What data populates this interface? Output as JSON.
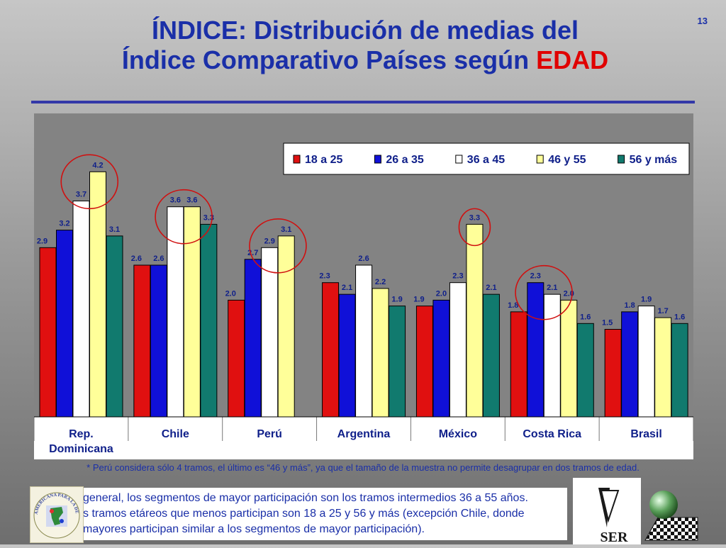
{
  "slide_number": "13",
  "title": {
    "line1": "ÍNDICE: Distribución de medias del",
    "line2_prefix": "Índice Comparativo Países según ",
    "line2_highlight": "EDAD"
  },
  "colors": {
    "title": "#1a2fa8",
    "highlight": "#e00000",
    "series": [
      "#e01010",
      "#1010d8",
      "#ffffff",
      "#ffff99",
      "#117a6e"
    ]
  },
  "chart_data": {
    "type": "bar",
    "categories": [
      "Rep. Dominicana",
      "Chile",
      "Perú",
      "Argentina",
      "México",
      "Costa Rica",
      "Brasil"
    ],
    "series": [
      {
        "name": "18 a 25",
        "values": [
          2.9,
          2.6,
          2.0,
          2.3,
          1.9,
          1.8,
          1.5
        ]
      },
      {
        "name": "26 a 35",
        "values": [
          3.2,
          2.6,
          2.7,
          2.1,
          2.0,
          2.3,
          1.8
        ]
      },
      {
        "name": "36 a 45",
        "values": [
          3.7,
          3.6,
          2.9,
          2.6,
          2.3,
          2.1,
          1.9
        ]
      },
      {
        "name": "46 y 55",
        "values": [
          4.2,
          3.6,
          3.1,
          2.2,
          3.3,
          2.0,
          1.7
        ]
      },
      {
        "name": "56 y más",
        "values": [
          3.1,
          3.3,
          null,
          1.9,
          2.1,
          1.6,
          1.6
        ]
      }
    ],
    "ylim": [
      0,
      5.2
    ],
    "legend_position": "top-right",
    "grid": false,
    "highlighted_categories": [
      "Rep. Dominicana",
      "Chile",
      "Perú",
      "México",
      "Costa Rica"
    ]
  },
  "footnote": "* Perú considera sólo 4 tramos, el último es “46 y más”, ya que el tamaño de la muestra no permite desagrupar en dos tramos de edad.",
  "conclusion": {
    "line1": "general, los segmentos de mayor participación son los tramos intermedios 36 a 55 años.",
    "line2": "s tramos etáreos que menos participan son 18 a 25 y 56 y más (excepción Chile, donde",
    "line3": "mayores participan similar a los segmentos de mayor participación)."
  },
  "logos": {
    "left": "RED INTERAMERICANA PARA LA DEMOCRACIA",
    "center": "SER"
  }
}
